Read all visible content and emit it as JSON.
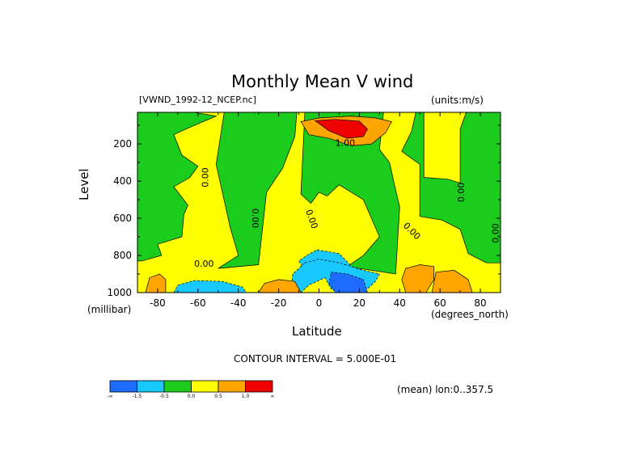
{
  "chart_data": {
    "type": "heatmap",
    "title": "Monthly Mean V wind",
    "dataset_label": "[VWND_1992-12_NCEP.nc]",
    "units_label": "(units:m/s)",
    "xlabel": "Latitude",
    "x_units": "(degrees_north)",
    "ylabel": "Level",
    "y_units": "(millibar)",
    "xlim": [
      -90,
      90
    ],
    "ylim": [
      1000,
      30
    ],
    "y_inverted": true,
    "x_ticks": [
      -80,
      -60,
      -40,
      -20,
      0,
      20,
      40,
      60,
      80
    ],
    "y_ticks": [
      200,
      400,
      600,
      800,
      1000
    ],
    "contour_interval_label": "CONTOUR INTERVAL = 5.000E-01",
    "contour_labels": [
      "0.00",
      "0.00",
      "0.00",
      "0.00",
      "0.00",
      "0.00",
      "0.00",
      "1.00"
    ],
    "averaging_label": "(mean) lon:0..357.5",
    "colorbar": {
      "colors": [
        "#1e6cff",
        "#18c8ff",
        "#1ccc1c",
        "#ffff00",
        "#ffa500",
        "#ee0000"
      ],
      "boundary_labels": [
        "-∞",
        "-1.5",
        "-0.5",
        "0.0",
        "0.5",
        "1.0",
        "∞"
      ]
    },
    "regions": [
      {
        "name": "negative-mid",
        "level": 2,
        "polygon": [
          [
            -62,
            30
          ],
          [
            -51,
            50
          ],
          [
            -66,
            120
          ],
          [
            -72,
            150
          ],
          [
            -68,
            260
          ],
          [
            -60,
            320
          ],
          [
            -64,
            380
          ],
          [
            -72,
            430
          ],
          [
            -65,
            530
          ],
          [
            -67,
            580
          ],
          [
            -68,
            700
          ],
          [
            -80,
            740
          ],
          [
            -78,
            800
          ],
          [
            -88,
            830
          ],
          [
            -90,
            830
          ],
          [
            -90,
            30
          ]
        ]
      },
      {
        "name": "negative-south-mid",
        "level": 2,
        "polygon": [
          [
            -47,
            30
          ],
          [
            -51,
            310
          ],
          [
            -44,
            650
          ],
          [
            -40,
            800
          ],
          [
            -50,
            870
          ],
          [
            -30,
            850
          ],
          [
            -26,
            460
          ],
          [
            -18,
            330
          ],
          [
            -12,
            160
          ],
          [
            -11,
            30
          ]
        ]
      },
      {
        "name": "negative-central",
        "level": 2,
        "polygon": [
          [
            22,
            500
          ],
          [
            30,
            700
          ],
          [
            22,
            800
          ],
          [
            14,
            860
          ],
          [
            38,
            900
          ],
          [
            40,
            540
          ],
          [
            37,
            400
          ],
          [
            35,
            300
          ],
          [
            30,
            230
          ],
          [
            32,
            30
          ],
          [
            -7,
            30
          ],
          [
            -9,
            470
          ],
          [
            -4,
            520
          ],
          [
            0,
            460
          ],
          [
            4,
            480
          ],
          [
            10,
            420
          ]
        ]
      },
      {
        "name": "negative-north",
        "level": 2,
        "polygon": [
          [
            48,
            30
          ],
          [
            46,
            130
          ],
          [
            41,
            240
          ],
          [
            50,
            310
          ],
          [
            50,
            590
          ],
          [
            61,
            610
          ],
          [
            70,
            660
          ],
          [
            74,
            790
          ],
          [
            83,
            840
          ],
          [
            90,
            840
          ],
          [
            90,
            30
          ],
          [
            73,
            30
          ],
          [
            70,
            120
          ],
          [
            70,
            410
          ],
          [
            64,
            390
          ],
          [
            52,
            380
          ],
          [
            52,
            30
          ]
        ]
      },
      {
        "name": "negative-pocket",
        "level": 3,
        "polygon": [
          [
            -1,
            770
          ],
          [
            10,
            790
          ],
          [
            18,
            880
          ],
          [
            12,
            900
          ],
          [
            2,
            870
          ],
          [
            -6,
            900
          ],
          [
            -10,
            830
          ],
          [
            -6,
            800
          ]
        ]
      },
      {
        "name": "strong-negative",
        "level": 4,
        "polygon": [
          [
            -7,
            840
          ],
          [
            0,
            820
          ],
          [
            10,
            840
          ],
          [
            22,
            880
          ],
          [
            30,
            900
          ],
          [
            28,
            940
          ],
          [
            22,
            1000
          ],
          [
            16,
            1000
          ],
          [
            6,
            980
          ],
          [
            3,
            920
          ],
          [
            -5,
            960
          ],
          [
            -9,
            1000
          ],
          [
            -14,
            1000
          ],
          [
            -13,
            900
          ]
        ]
      },
      {
        "name": "strong-negative-core",
        "level": 5,
        "polygon": [
          [
            6,
            890
          ],
          [
            14,
            900
          ],
          [
            22,
            930
          ],
          [
            24,
            1000
          ],
          [
            8,
            1000
          ],
          [
            5,
            950
          ]
        ]
      },
      {
        "name": "negative-south-surface",
        "level": 4,
        "polygon": [
          [
            -70,
            960
          ],
          [
            -62,
            935
          ],
          [
            -48,
            940
          ],
          [
            -38,
            970
          ],
          [
            -36,
            1000
          ],
          [
            -72,
            1000
          ]
        ]
      },
      {
        "name": "positive-south-surface",
        "level": 7,
        "polygon": [
          [
            -30,
            1000
          ],
          [
            -27,
            950
          ],
          [
            -20,
            930
          ],
          [
            -12,
            940
          ],
          [
            -9,
            1000
          ]
        ]
      },
      {
        "name": "positive-polar-surface",
        "level": 7,
        "polygon": [
          [
            -86,
            1000
          ],
          [
            -84,
            920
          ],
          [
            -79,
            900
          ],
          [
            -76,
            930
          ],
          [
            -76,
            1000
          ]
        ]
      },
      {
        "name": "positive-upper-jet",
        "level": 7,
        "polygon": [
          [
            -9,
            80
          ],
          [
            0,
            60
          ],
          [
            16,
            50
          ],
          [
            28,
            60
          ],
          [
            36,
            80
          ],
          [
            33,
            140
          ],
          [
            26,
            200
          ],
          [
            16,
            210
          ],
          [
            5,
            170
          ],
          [
            -5,
            150
          ]
        ]
      },
      {
        "name": "upper-jet-core",
        "level": 8,
        "polygon": [
          [
            -2,
            75
          ],
          [
            8,
            68
          ],
          [
            20,
            78
          ],
          [
            24,
            120
          ],
          [
            22,
            160
          ],
          [
            14,
            170
          ],
          [
            5,
            130
          ]
        ]
      },
      {
        "name": "positive-north-surface",
        "level": 7,
        "polygon": [
          [
            43,
            870
          ],
          [
            50,
            850
          ],
          [
            57,
            860
          ],
          [
            57,
            930
          ],
          [
            53,
            1000
          ],
          [
            43,
            1000
          ],
          [
            41,
            930
          ]
        ]
      },
      {
        "name": "positive-north-surface-2",
        "level": 7,
        "polygon": [
          [
            58,
            890
          ],
          [
            67,
            880
          ],
          [
            74,
            930
          ],
          [
            76,
            1000
          ],
          [
            56,
            1000
          ]
        ]
      }
    ]
  }
}
